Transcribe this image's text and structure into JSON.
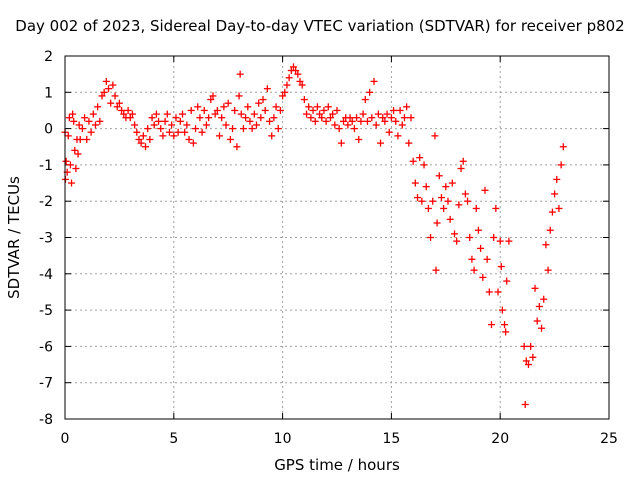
{
  "chart_data": {
    "type": "scatter",
    "title": "Day 002 of 2023, Sidereal Day-to-day VTEC variation (SDTVAR) for receiver p802",
    "xlabel": "GPS time / hours",
    "ylabel": "SDTVAR / TECUs",
    "xlim": [
      0,
      25
    ],
    "ylim": [
      -8,
      2
    ],
    "x_ticks": [
      0,
      5,
      10,
      15,
      20,
      25
    ],
    "y_ticks": [
      2,
      1,
      0,
      -1,
      -2,
      -3,
      -4,
      -5,
      -6,
      -7,
      -8
    ],
    "grid": true,
    "marker": "+",
    "series": [
      {
        "name": "SDTVAR",
        "color": "#ff0000",
        "points": [
          [
            0.0,
            -0.1
          ],
          [
            0.02,
            -1.4
          ],
          [
            0.05,
            -0.9
          ],
          [
            0.1,
            -1.2
          ],
          [
            0.15,
            -0.2
          ],
          [
            0.2,
            0.3
          ],
          [
            0.25,
            -1.0
          ],
          [
            0.3,
            -1.5
          ],
          [
            0.35,
            0.4
          ],
          [
            0.4,
            0.2
          ],
          [
            0.45,
            -0.6
          ],
          [
            0.5,
            -1.1
          ],
          [
            0.55,
            -0.3
          ],
          [
            0.6,
            -0.7
          ],
          [
            0.65,
            0.1
          ],
          [
            0.7,
            -0.3
          ],
          [
            0.8,
            0.0
          ],
          [
            0.9,
            0.3
          ],
          [
            1.0,
            -0.3
          ],
          [
            1.1,
            0.2
          ],
          [
            1.2,
            -0.1
          ],
          [
            1.3,
            0.4
          ],
          [
            1.4,
            0.1
          ],
          [
            1.5,
            0.6
          ],
          [
            1.6,
            0.2
          ],
          [
            1.7,
            0.9
          ],
          [
            1.8,
            1.0
          ],
          [
            1.9,
            1.3
          ],
          [
            2.0,
            1.1
          ],
          [
            2.1,
            0.7
          ],
          [
            2.2,
            1.2
          ],
          [
            2.3,
            0.9
          ],
          [
            2.4,
            0.6
          ],
          [
            2.5,
            0.7
          ],
          [
            2.6,
            0.5
          ],
          [
            2.7,
            0.4
          ],
          [
            2.8,
            0.3
          ],
          [
            2.9,
            0.5
          ],
          [
            3.0,
            0.3
          ],
          [
            3.1,
            0.4
          ],
          [
            3.2,
            0.1
          ],
          [
            3.3,
            -0.1
          ],
          [
            3.4,
            -0.3
          ],
          [
            3.5,
            -0.4
          ],
          [
            3.6,
            -0.2
          ],
          [
            3.7,
            -0.5
          ],
          [
            3.8,
            0.0
          ],
          [
            3.9,
            -0.3
          ],
          [
            4.0,
            0.3
          ],
          [
            4.1,
            0.1
          ],
          [
            4.2,
            0.4
          ],
          [
            4.3,
            0.2
          ],
          [
            4.4,
            0.0
          ],
          [
            4.5,
            -0.2
          ],
          [
            4.6,
            0.2
          ],
          [
            4.7,
            0.4
          ],
          [
            4.8,
            -0.1
          ],
          [
            4.9,
            0.1
          ],
          [
            5.0,
            -0.2
          ],
          [
            5.1,
            0.3
          ],
          [
            5.2,
            -0.1
          ],
          [
            5.3,
            0.2
          ],
          [
            5.4,
            0.4
          ],
          [
            5.5,
            -0.1
          ],
          [
            5.6,
            0.1
          ],
          [
            5.7,
            -0.3
          ],
          [
            5.8,
            0.5
          ],
          [
            5.9,
            -0.4
          ],
          [
            6.0,
            0.0
          ],
          [
            6.1,
            0.6
          ],
          [
            6.2,
            0.3
          ],
          [
            6.3,
            -0.1
          ],
          [
            6.4,
            0.5
          ],
          [
            6.5,
            0.1
          ],
          [
            6.6,
            0.3
          ],
          [
            6.7,
            0.8
          ],
          [
            6.8,
            0.9
          ],
          [
            6.9,
            0.4
          ],
          [
            7.0,
            0.5
          ],
          [
            7.1,
            -0.2
          ],
          [
            7.2,
            0.3
          ],
          [
            7.3,
            0.6
          ],
          [
            7.4,
            0.1
          ],
          [
            7.5,
            0.7
          ],
          [
            7.6,
            -0.3
          ],
          [
            7.7,
            0.0
          ],
          [
            7.8,
            0.5
          ],
          [
            7.9,
            -0.5
          ],
          [
            8.0,
            0.9
          ],
          [
            8.05,
            1.5
          ],
          [
            8.1,
            0.4
          ],
          [
            8.2,
            0.0
          ],
          [
            8.3,
            0.3
          ],
          [
            8.4,
            0.6
          ],
          [
            8.5,
            0.2
          ],
          [
            8.6,
            0.0
          ],
          [
            8.7,
            0.4
          ],
          [
            8.8,
            0.1
          ],
          [
            8.9,
            0.7
          ],
          [
            9.0,
            0.3
          ],
          [
            9.1,
            0.8
          ],
          [
            9.2,
            0.5
          ],
          [
            9.3,
            1.1
          ],
          [
            9.4,
            0.2
          ],
          [
            9.5,
            -0.2
          ],
          [
            9.6,
            0.3
          ],
          [
            9.7,
            0.6
          ],
          [
            9.8,
            0.0
          ],
          [
            9.9,
            0.5
          ],
          [
            10.0,
            0.9
          ],
          [
            10.1,
            1.0
          ],
          [
            10.2,
            1.2
          ],
          [
            10.3,
            1.4
          ],
          [
            10.4,
            1.6
          ],
          [
            10.5,
            1.7
          ],
          [
            10.6,
            1.6
          ],
          [
            10.7,
            1.5
          ],
          [
            10.8,
            1.3
          ],
          [
            10.9,
            1.2
          ],
          [
            11.0,
            0.8
          ],
          [
            11.1,
            0.4
          ],
          [
            11.2,
            0.6
          ],
          [
            11.3,
            0.3
          ],
          [
            11.4,
            0.5
          ],
          [
            11.5,
            0.2
          ],
          [
            11.6,
            0.6
          ],
          [
            11.7,
            0.4
          ],
          [
            11.8,
            0.3
          ],
          [
            11.9,
            0.5
          ],
          [
            12.0,
            0.2
          ],
          [
            12.1,
            0.6
          ],
          [
            12.2,
            0.3
          ],
          [
            12.3,
            0.4
          ],
          [
            12.4,
            0.1
          ],
          [
            12.5,
            0.5
          ],
          [
            12.6,
            0.0
          ],
          [
            12.7,
            -0.4
          ],
          [
            12.8,
            0.2
          ],
          [
            12.9,
            0.3
          ],
          [
            13.0,
            0.1
          ],
          [
            13.1,
            0.3
          ],
          [
            13.2,
            0.2
          ],
          [
            13.3,
            0.0
          ],
          [
            13.4,
            0.3
          ],
          [
            13.5,
            -0.3
          ],
          [
            13.6,
            0.2
          ],
          [
            13.7,
            0.4
          ],
          [
            13.8,
            0.8
          ],
          [
            13.9,
            0.2
          ],
          [
            14.0,
            1.0
          ],
          [
            14.1,
            0.3
          ],
          [
            14.2,
            1.3
          ],
          [
            14.3,
            0.1
          ],
          [
            14.4,
            0.4
          ],
          [
            14.5,
            -0.4
          ],
          [
            14.6,
            0.3
          ],
          [
            14.7,
            0.2
          ],
          [
            14.8,
            0.4
          ],
          [
            14.9,
            -0.1
          ],
          [
            15.0,
            0.3
          ],
          [
            15.1,
            0.5
          ],
          [
            15.2,
            0.2
          ],
          [
            15.3,
            -0.2
          ],
          [
            15.4,
            0.5
          ],
          [
            15.5,
            0.1
          ],
          [
            15.6,
            0.3
          ],
          [
            15.7,
            0.6
          ],
          [
            15.8,
            -0.4
          ],
          [
            15.9,
            0.3
          ],
          [
            16.0,
            -0.9
          ],
          [
            16.1,
            -1.5
          ],
          [
            16.2,
            -1.9
          ],
          [
            16.3,
            -0.8
          ],
          [
            16.4,
            -2.0
          ],
          [
            16.5,
            -1.0
          ],
          [
            16.6,
            -1.6
          ],
          [
            16.7,
            -2.2
          ],
          [
            16.8,
            -3.0
          ],
          [
            16.9,
            -2.0
          ],
          [
            17.0,
            -0.2
          ],
          [
            17.05,
            -3.9
          ],
          [
            17.1,
            -2.6
          ],
          [
            17.2,
            -1.3
          ],
          [
            17.3,
            -1.9
          ],
          [
            17.4,
            -2.2
          ],
          [
            17.5,
            -1.6
          ],
          [
            17.6,
            -2.0
          ],
          [
            17.7,
            -2.5
          ],
          [
            17.8,
            -1.5
          ],
          [
            17.9,
            -2.9
          ],
          [
            18.0,
            -3.1
          ],
          [
            18.1,
            -2.1
          ],
          [
            18.2,
            -1.1
          ],
          [
            18.3,
            -0.9
          ],
          [
            18.4,
            -1.8
          ],
          [
            18.5,
            -2.0
          ],
          [
            18.6,
            -3.0
          ],
          [
            18.7,
            -3.6
          ],
          [
            18.8,
            -3.9
          ],
          [
            18.9,
            -2.2
          ],
          [
            19.0,
            -2.8
          ],
          [
            19.1,
            -3.3
          ],
          [
            19.2,
            -4.1
          ],
          [
            19.3,
            -1.7
          ],
          [
            19.4,
            -3.6
          ],
          [
            19.5,
            -4.5
          ],
          [
            19.6,
            -5.4
          ],
          [
            19.7,
            -3.0
          ],
          [
            19.8,
            -2.2
          ],
          [
            19.9,
            -4.5
          ],
          [
            20.0,
            -3.1
          ],
          [
            20.05,
            -3.8
          ],
          [
            20.1,
            -5.0
          ],
          [
            20.2,
            -5.4
          ],
          [
            20.25,
            -5.6
          ],
          [
            20.3,
            -4.2
          ],
          [
            20.4,
            -3.1
          ],
          [
            21.1,
            -6.0
          ],
          [
            21.15,
            -7.6
          ],
          [
            21.2,
            -6.4
          ],
          [
            21.3,
            -6.5
          ],
          [
            21.4,
            -6.0
          ],
          [
            21.5,
            -6.3
          ],
          [
            21.6,
            -4.4
          ],
          [
            21.7,
            -5.3
          ],
          [
            21.8,
            -4.9
          ],
          [
            21.9,
            -5.5
          ],
          [
            22.0,
            -4.7
          ],
          [
            22.1,
            -3.2
          ],
          [
            22.2,
            -3.9
          ],
          [
            22.3,
            -2.8
          ],
          [
            22.4,
            -2.3
          ],
          [
            22.5,
            -1.8
          ],
          [
            22.6,
            -1.4
          ],
          [
            22.7,
            -2.2
          ],
          [
            22.8,
            -1.0
          ],
          [
            22.9,
            -0.5
          ]
        ]
      }
    ]
  }
}
